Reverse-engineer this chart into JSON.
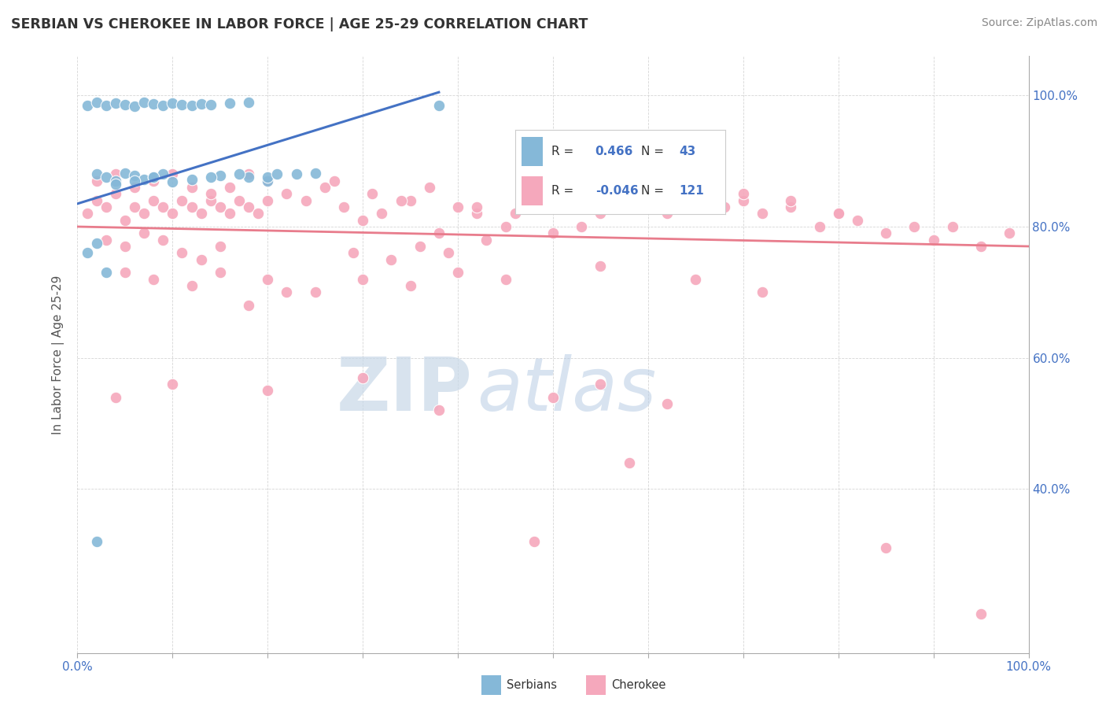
{
  "title": "SERBIAN VS CHEROKEE IN LABOR FORCE | AGE 25-29 CORRELATION CHART",
  "source": "Source: ZipAtlas.com",
  "ylabel": "In Labor Force | Age 25-29",
  "xlim": [
    0.0,
    1.0
  ],
  "ylim": [
    0.15,
    1.06
  ],
  "serbian_R": 0.466,
  "serbian_N": 43,
  "cherokee_R": -0.046,
  "cherokee_N": 121,
  "serbian_color": "#85B8D8",
  "cherokee_color": "#F5A8BC",
  "serbian_line_color": "#4472C4",
  "cherokee_line_color": "#E87C8C",
  "watermark_zip": "ZIP",
  "watermark_atlas": "atlas",
  "serb_trend_x0": 0.0,
  "serb_trend_y0": 0.835,
  "serb_trend_x1": 0.38,
  "serb_trend_y1": 1.005,
  "cher_trend_x0": 0.0,
  "cher_trend_y0": 0.8,
  "cher_trend_x1": 1.0,
  "cher_trend_y1": 0.77,
  "y_ticks": [
    0.4,
    0.6,
    0.8,
    1.0
  ],
  "y_tick_labels": [
    "40.0%",
    "60.0%",
    "80.0%",
    "100.0%"
  ],
  "x_tick_labels_show": [
    "0.0%",
    "100.0%"
  ],
  "legend_R1": "0.466",
  "legend_N1": "43",
  "legend_R2": "-0.046",
  "legend_N2": "121"
}
